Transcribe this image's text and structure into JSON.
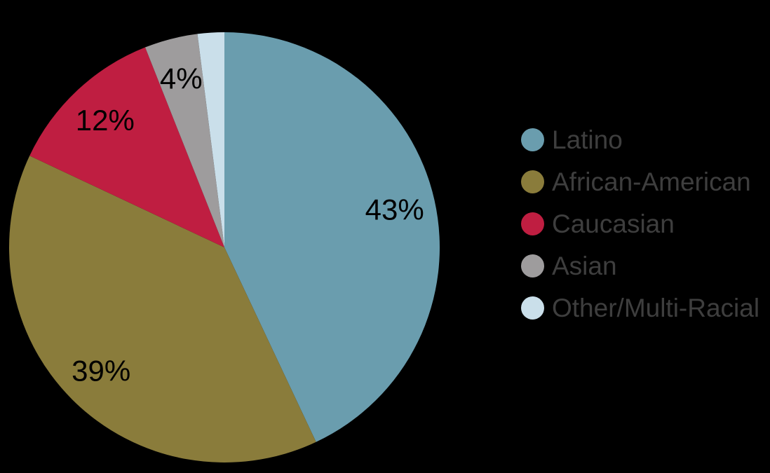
{
  "chart_data": {
    "type": "pie",
    "title": "",
    "slices": [
      {
        "name": "Latino",
        "value": 43,
        "label": "43%",
        "color": "#6A9DAE"
      },
      {
        "name": "African-American",
        "value": 39,
        "label": "39%",
        "color": "#8A7C3B"
      },
      {
        "name": "Caucasian",
        "value": 12,
        "label": "12%",
        "color": "#BF1E41"
      },
      {
        "name": "Asian",
        "value": 4,
        "label": "4%",
        "color": "#9E9C9D"
      },
      {
        "name": "Other/Multi-Racial",
        "value": 2,
        "label": "",
        "color": "#CADFEA"
      }
    ],
    "start_angle_deg": 0,
    "direction": "clockwise",
    "legend_position": "right",
    "background_color": "#000000",
    "slice_label_color": "#000000",
    "legend_text_color": "#3E3E3E"
  }
}
